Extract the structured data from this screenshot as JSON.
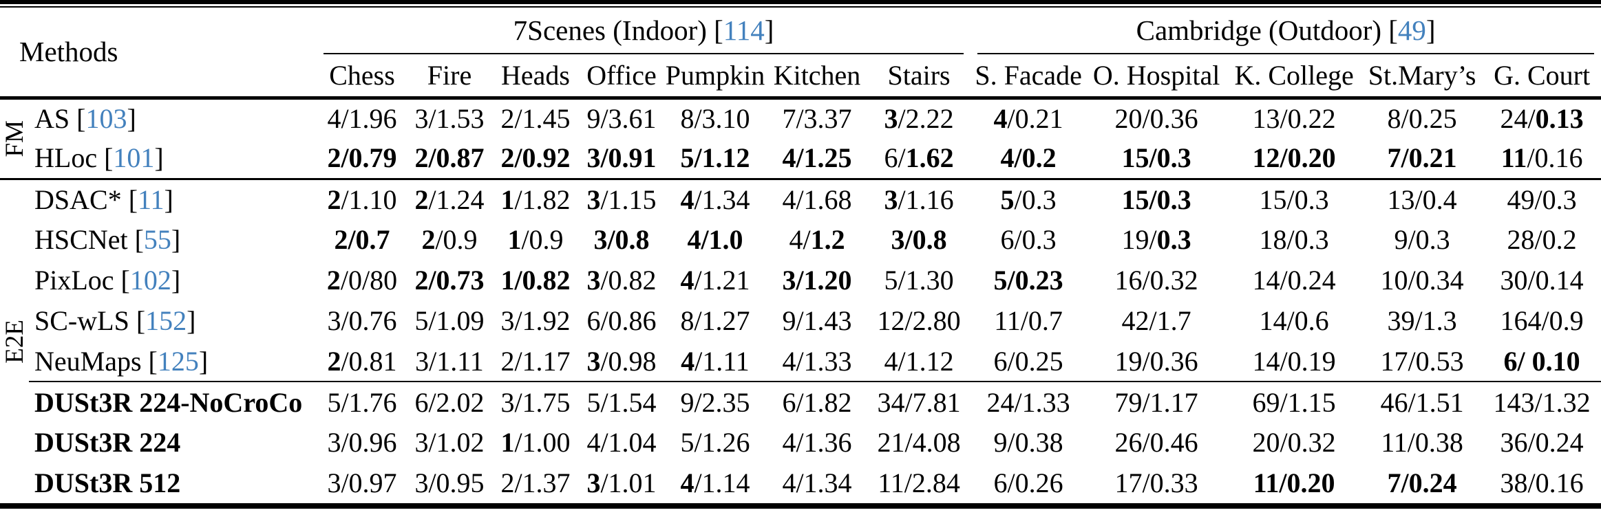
{
  "colors": {
    "citation_blue": "#4381bd",
    "text": "#000000",
    "background": "#ffffff"
  },
  "table": {
    "methods_header": "Methods",
    "groups": [
      {
        "label": "7Scenes (Indoor)",
        "ref": "114",
        "columns": [
          "Chess",
          "Fire",
          "Heads",
          "Office",
          "Pumpkin",
          "Kitchen",
          "Stairs"
        ]
      },
      {
        "label": "Cambridge (Outdoor)",
        "ref": "49",
        "columns": [
          "S. Facade",
          "O. Hospital",
          "K. College",
          "St.Mary’s",
          "G. Court"
        ]
      }
    ],
    "row_groups": [
      {
        "label": "FM",
        "rows": [
          {
            "method": "AS",
            "ref": "103",
            "bold_method": false,
            "cells": [
              "4/1.96",
              "3/1.53",
              "2/1.45",
              "9/3.61",
              "8/3.10",
              "7/3.37",
              "**3**/2.22",
              "**4**/0.21",
              "20/0.36",
              "13/0.22",
              "8/0.25",
              "24/**0.13**"
            ]
          },
          {
            "method": "HLoc",
            "ref": "101",
            "bold_method": false,
            "rule_below": "full",
            "cells": [
              "**2/0.79**",
              "**2/0.87**",
              "**2/0.92**",
              "**3/0.91**",
              "**5/1.12**",
              "**4/1.25**",
              "6/**1.62**",
              "**4/0.2**",
              "**15/0.3**",
              "**12/0.20**",
              "**7/0.21**",
              "**11**/0.16"
            ]
          }
        ]
      },
      {
        "label": "E2E",
        "rows": [
          {
            "method": "DSAC*",
            "ref": "11",
            "bold_method": false,
            "cells": [
              "**2**/1.10",
              "**2**/1.24",
              "**1**/1.82",
              "**3**/1.15",
              "**4**/1.34",
              "4/1.68",
              "**3**/1.16",
              "**5**/0.3",
              "**15/0.3**",
              "15/0.3",
              "13/0.4",
              "49/0.3"
            ]
          },
          {
            "method": "HSCNet",
            "ref": "55",
            "bold_method": false,
            "cells": [
              "**2/0.7**",
              "**2**/0.9",
              "**1**/0.9",
              "**3/0.8**",
              "**4/1.0**",
              "4/**1.2**",
              "**3/0.8**",
              "6/0.3",
              "19/**0.3**",
              "18/0.3",
              "9/0.3",
              "28/0.2"
            ]
          },
          {
            "method": "PixLoc",
            "ref": "102",
            "bold_method": false,
            "cells": [
              "**2**/0/80",
              "**2/0.73**",
              "**1/0.82**",
              "**3**/0.82",
              "**4**/1.21",
              "**3/1.20**",
              "5/1.30",
              "**5/0.23**",
              "16/0.32",
              "14/0.24",
              "10/0.34",
              "30/0.14"
            ]
          },
          {
            "method": "SC-wLS",
            "ref": "152",
            "bold_method": false,
            "cells": [
              "3/0.76",
              "5/1.09",
              "3/1.92",
              "6/0.86",
              "8/1.27",
              "9/1.43",
              "12/2.80",
              "11/0.7",
              "42/1.7",
              "14/0.6",
              "39/1.3",
              "164/0.9"
            ]
          },
          {
            "method": "NeuMaps",
            "ref": "125",
            "bold_method": false,
            "rule_below": "partial",
            "cells": [
              "**2**/0.81",
              "3/1.11",
              "2/1.17",
              "**3**/0.98",
              "**4**/1.11",
              "4/1.33",
              "4/1.12",
              "6/0.25",
              "19/0.36",
              "14/0.19",
              "17/0.53",
              "**6/ 0.10**"
            ]
          },
          {
            "method": "DUSt3R 224-NoCroCo",
            "ref": null,
            "bold_method": true,
            "cells": [
              "5/1.76",
              "6/2.02",
              "3/1.75",
              "5/1.54",
              "9/2.35",
              "6/1.82",
              "34/7.81",
              "24/1.33",
              "79/1.17",
              "69/1.15",
              "46/1.51",
              "143/1.32"
            ]
          },
          {
            "method": "DUSt3R 224",
            "ref": null,
            "bold_method": true,
            "cells": [
              "3/0.96",
              "3/1.02",
              "**1**/1.00",
              "4/1.04",
              "5/1.26",
              "4/1.36",
              "21/4.08",
              "9/0.38",
              "26/0.46",
              "20/0.32",
              "11/0.38",
              "36/0.24"
            ]
          },
          {
            "method": "DUSt3R 512",
            "ref": null,
            "bold_method": true,
            "cells": [
              "3/0.97",
              "3/0.95",
              "2/1.37",
              "**3**/1.01",
              "**4**/1.14",
              "4/1.34",
              "11/2.84",
              "6/0.26",
              "17/0.33",
              "**11/0.20**",
              "**7/0.24**",
              "38/0.16"
            ]
          }
        ]
      }
    ]
  }
}
